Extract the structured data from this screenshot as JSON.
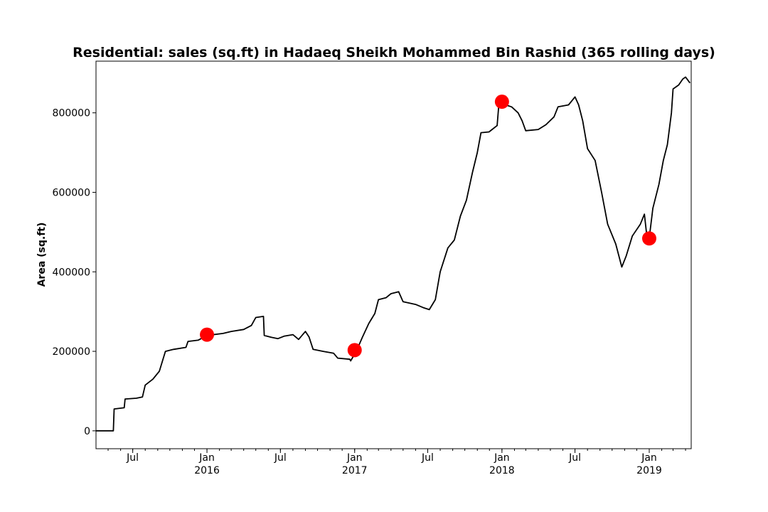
{
  "chart_data": {
    "type": "line",
    "title": "Residential: sales (sq.ft) in Hadaeq Sheikh Mohammed Bin Rashid (365 rolling days)",
    "xlabel": "",
    "ylabel": "Area (sq.ft)",
    "grid": false,
    "legend": "none",
    "xlim": [
      "2015-04-01",
      "2019-04-15"
    ],
    "ylim": [
      -45000,
      930000
    ],
    "y_ticks": [
      0,
      200000,
      400000,
      600000,
      800000
    ],
    "y_tick_labels": [
      "0",
      "200000",
      "400000",
      "600000",
      "800000"
    ],
    "x_ticks": [
      {
        "date": "2015-07-01",
        "label": "Jul",
        "year": ""
      },
      {
        "date": "2016-01-01",
        "label": "Jan",
        "year": "2016"
      },
      {
        "date": "2016-07-01",
        "label": "Jul",
        "year": ""
      },
      {
        "date": "2017-01-01",
        "label": "Jan",
        "year": "2017"
      },
      {
        "date": "2017-07-01",
        "label": "Jul",
        "year": ""
      },
      {
        "date": "2018-01-01",
        "label": "Jan",
        "year": "2018"
      },
      {
        "date": "2018-07-01",
        "label": "Jul",
        "year": ""
      },
      {
        "date": "2019-01-01",
        "label": "Jan",
        "year": "2019"
      }
    ],
    "series": [
      {
        "color": "#000000",
        "points": [
          [
            "2015-04-01",
            0
          ],
          [
            "2015-05-14",
            0
          ],
          [
            "2015-05-16",
            55000
          ],
          [
            "2015-06-10",
            58000
          ],
          [
            "2015-06-12",
            80000
          ],
          [
            "2015-07-10",
            82000
          ],
          [
            "2015-07-25",
            85000
          ],
          [
            "2015-08-01",
            115000
          ],
          [
            "2015-08-20",
            130000
          ],
          [
            "2015-09-05",
            150000
          ],
          [
            "2015-09-20",
            200000
          ],
          [
            "2015-10-10",
            205000
          ],
          [
            "2015-11-10",
            210000
          ],
          [
            "2015-11-15",
            225000
          ],
          [
            "2015-12-10",
            228000
          ],
          [
            "2016-01-01",
            240000
          ],
          [
            "2016-02-10",
            245000
          ],
          [
            "2016-03-01",
            250000
          ],
          [
            "2016-04-01",
            255000
          ],
          [
            "2016-04-20",
            265000
          ],
          [
            "2016-05-01",
            285000
          ],
          [
            "2016-05-20",
            288000
          ],
          [
            "2016-05-22",
            240000
          ],
          [
            "2016-06-10",
            235000
          ],
          [
            "2016-06-25",
            232000
          ],
          [
            "2016-07-10",
            238000
          ],
          [
            "2016-08-01",
            242000
          ],
          [
            "2016-08-15",
            230000
          ],
          [
            "2016-09-01",
            250000
          ],
          [
            "2016-09-10",
            236000
          ],
          [
            "2016-09-20",
            205000
          ],
          [
            "2016-10-15",
            200000
          ],
          [
            "2016-11-10",
            195000
          ],
          [
            "2016-11-20",
            183000
          ],
          [
            "2016-12-20",
            180000
          ],
          [
            "2016-12-22",
            176000
          ],
          [
            "2017-01-05",
            200000
          ],
          [
            "2017-01-20",
            235000
          ],
          [
            "2017-02-05",
            270000
          ],
          [
            "2017-02-20",
            295000
          ],
          [
            "2017-03-01",
            330000
          ],
          [
            "2017-03-20",
            335000
          ],
          [
            "2017-04-01",
            345000
          ],
          [
            "2017-04-20",
            350000
          ],
          [
            "2017-05-01",
            325000
          ],
          [
            "2017-06-01",
            318000
          ],
          [
            "2017-06-20",
            310000
          ],
          [
            "2017-07-05",
            305000
          ],
          [
            "2017-07-20",
            330000
          ],
          [
            "2017-08-01",
            400000
          ],
          [
            "2017-08-20",
            460000
          ],
          [
            "2017-09-05",
            480000
          ],
          [
            "2017-09-20",
            540000
          ],
          [
            "2017-10-05",
            580000
          ],
          [
            "2017-10-20",
            650000
          ],
          [
            "2017-11-01",
            700000
          ],
          [
            "2017-11-10",
            750000
          ],
          [
            "2017-11-30",
            752000
          ],
          [
            "2017-12-10",
            760000
          ],
          [
            "2017-12-20",
            768000
          ],
          [
            "2017-12-25",
            830000
          ],
          [
            "2018-01-01",
            840000
          ],
          [
            "2018-01-10",
            820000
          ],
          [
            "2018-01-25",
            815000
          ],
          [
            "2018-02-10",
            800000
          ],
          [
            "2018-02-20",
            780000
          ],
          [
            "2018-03-01",
            755000
          ],
          [
            "2018-04-01",
            758000
          ],
          [
            "2018-04-20",
            770000
          ],
          [
            "2018-05-10",
            790000
          ],
          [
            "2018-05-20",
            815000
          ],
          [
            "2018-06-15",
            820000
          ],
          [
            "2018-07-01",
            840000
          ],
          [
            "2018-07-10",
            820000
          ],
          [
            "2018-07-20",
            780000
          ],
          [
            "2018-08-01",
            710000
          ],
          [
            "2018-08-20",
            680000
          ],
          [
            "2018-09-05",
            600000
          ],
          [
            "2018-09-20",
            520000
          ],
          [
            "2018-10-10",
            470000
          ],
          [
            "2018-10-25",
            412000
          ],
          [
            "2018-11-05",
            440000
          ],
          [
            "2018-11-20",
            490000
          ],
          [
            "2018-12-10",
            520000
          ],
          [
            "2018-12-20",
            545000
          ],
          [
            "2018-12-25",
            500000
          ],
          [
            "2019-01-01",
            485000
          ],
          [
            "2019-01-10",
            560000
          ],
          [
            "2019-01-25",
            620000
          ],
          [
            "2019-02-05",
            680000
          ],
          [
            "2019-02-15",
            720000
          ],
          [
            "2019-02-25",
            800000
          ],
          [
            "2019-03-01",
            860000
          ],
          [
            "2019-03-15",
            870000
          ],
          [
            "2019-03-25",
            885000
          ],
          [
            "2019-04-01",
            890000
          ],
          [
            "2019-04-12",
            875000
          ]
        ]
      }
    ],
    "markers": {
      "color": "#ff0000",
      "points": [
        [
          "2016-01-01",
          242000
        ],
        [
          "2017-01-01",
          203000
        ],
        [
          "2018-01-01",
          828000
        ],
        [
          "2019-01-01",
          484000
        ]
      ]
    }
  }
}
